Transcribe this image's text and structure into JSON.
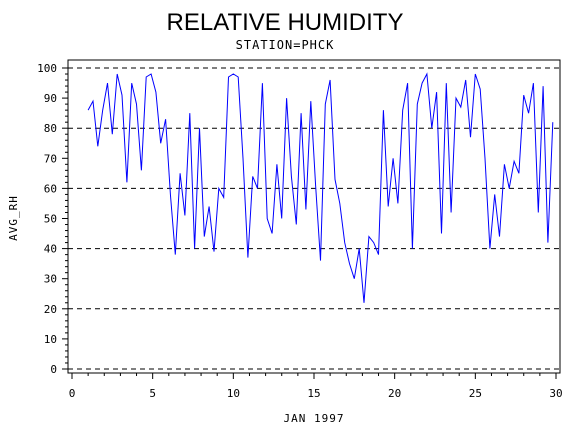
{
  "chart_data": {
    "type": "line",
    "title": "RELATIVE HUMIDITY",
    "subtitle": "STATION=PHCK",
    "xlabel": "JAN 1997",
    "ylabel": "AVG_RH",
    "xlim": [
      0,
      30
    ],
    "ylim": [
      0,
      100
    ],
    "x_ticks": [
      0,
      5,
      10,
      15,
      20,
      25,
      30
    ],
    "y_ticks": [
      0,
      10,
      20,
      30,
      40,
      50,
      60,
      70,
      80,
      90,
      100
    ],
    "dashed_reference_lines": [
      0,
      20,
      40,
      60,
      80,
      100
    ],
    "line_color": "#0000ff",
    "series": [
      {
        "x": [
          1.0,
          1.3,
          1.6,
          1.9,
          2.2,
          2.5,
          2.8,
          3.1,
          3.4,
          3.7,
          4.0,
          4.3,
          4.6,
          4.9,
          5.2,
          5.5,
          5.8,
          6.1,
          6.4,
          6.7,
          7.0,
          7.3,
          7.6,
          7.9,
          8.2,
          8.5,
          8.8,
          9.1,
          9.4,
          9.7,
          10.0,
          10.3,
          10.6,
          10.9,
          11.2,
          11.5,
          11.8,
          12.1,
          12.4,
          12.7,
          13.0,
          13.3,
          13.6,
          13.9,
          14.2,
          14.5,
          14.8,
          15.1,
          15.4,
          15.7,
          16.0,
          16.3,
          16.6,
          16.9,
          17.2,
          17.5,
          17.8,
          18.1,
          18.4,
          18.7,
          19.0,
          19.3,
          19.6,
          19.9,
          20.2,
          20.5,
          20.8,
          21.1,
          21.4,
          21.7,
          22.0,
          22.3,
          22.6,
          22.9,
          23.2,
          23.5,
          23.8,
          24.1,
          24.4,
          24.7,
          25.0,
          25.3,
          25.6,
          25.9,
          26.2,
          26.5,
          26.8,
          27.1,
          27.4,
          27.7,
          28.0,
          28.3,
          28.6,
          28.9,
          29.2,
          29.5,
          29.8
        ],
        "y": [
          86,
          89,
          74,
          86,
          95,
          78,
          98,
          91,
          62,
          95,
          88,
          66,
          97,
          98,
          92,
          75,
          83,
          58,
          38,
          65,
          51,
          85,
          40,
          80,
          44,
          54,
          39,
          60,
          57,
          97,
          98,
          97,
          70,
          37,
          64,
          60,
          95,
          50,
          45,
          68,
          50,
          90,
          64,
          48,
          85,
          53,
          89,
          61,
          36,
          88,
          96,
          63,
          55,
          42,
          35,
          30,
          40,
          22,
          44,
          42,
          38,
          86,
          54,
          70,
          55,
          86,
          95,
          40,
          88,
          95,
          98,
          80,
          92,
          45,
          95,
          52,
          90,
          87,
          96,
          77,
          98,
          93,
          70,
          40,
          58,
          44,
          68,
          60,
          69,
          65,
          91,
          85,
          95,
          52,
          94,
          42,
          82
        ]
      }
    ]
  }
}
